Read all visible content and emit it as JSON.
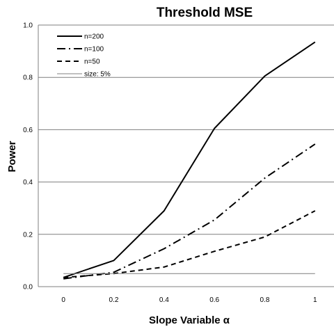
{
  "chart_data": {
    "type": "line",
    "title": "Threshold MSE",
    "xlabel": "Slope Variable α",
    "ylabel": "Power",
    "x": [
      0,
      0.2,
      0.4,
      0.6,
      0.8,
      1
    ],
    "x_tick_labels": [
      "0",
      "0.2",
      "0.4",
      "0.6",
      "0.8",
      "1"
    ],
    "ylim": [
      0,
      1.0
    ],
    "y_ticks": [
      0.0,
      0.2,
      0.4,
      0.6,
      0.8,
      1.0
    ],
    "y_tick_labels": [
      "0.0",
      "0.2",
      "0.4",
      "0.6",
      "0.8",
      "1.0"
    ],
    "grid": "horizontal",
    "legend_position": "top-left",
    "series": [
      {
        "name": "n=200",
        "style": "solid",
        "values": [
          0.035,
          0.1,
          0.29,
          0.605,
          0.805,
          0.935
        ]
      },
      {
        "name": "n=100",
        "style": "dash-dot",
        "values": [
          0.03,
          0.055,
          0.145,
          0.255,
          0.415,
          0.545
        ]
      },
      {
        "name": "n=50",
        "style": "dashed",
        "values": [
          0.035,
          0.05,
          0.075,
          0.135,
          0.19,
          0.29
        ]
      },
      {
        "name": "size: 5%",
        "style": "thin",
        "values": [
          0.05,
          0.05,
          0.05,
          0.05,
          0.05,
          0.05
        ]
      }
    ],
    "colors": {
      "lines": "#000000",
      "grid": "#7f7f7f",
      "reference": "#7f7f7f"
    }
  }
}
